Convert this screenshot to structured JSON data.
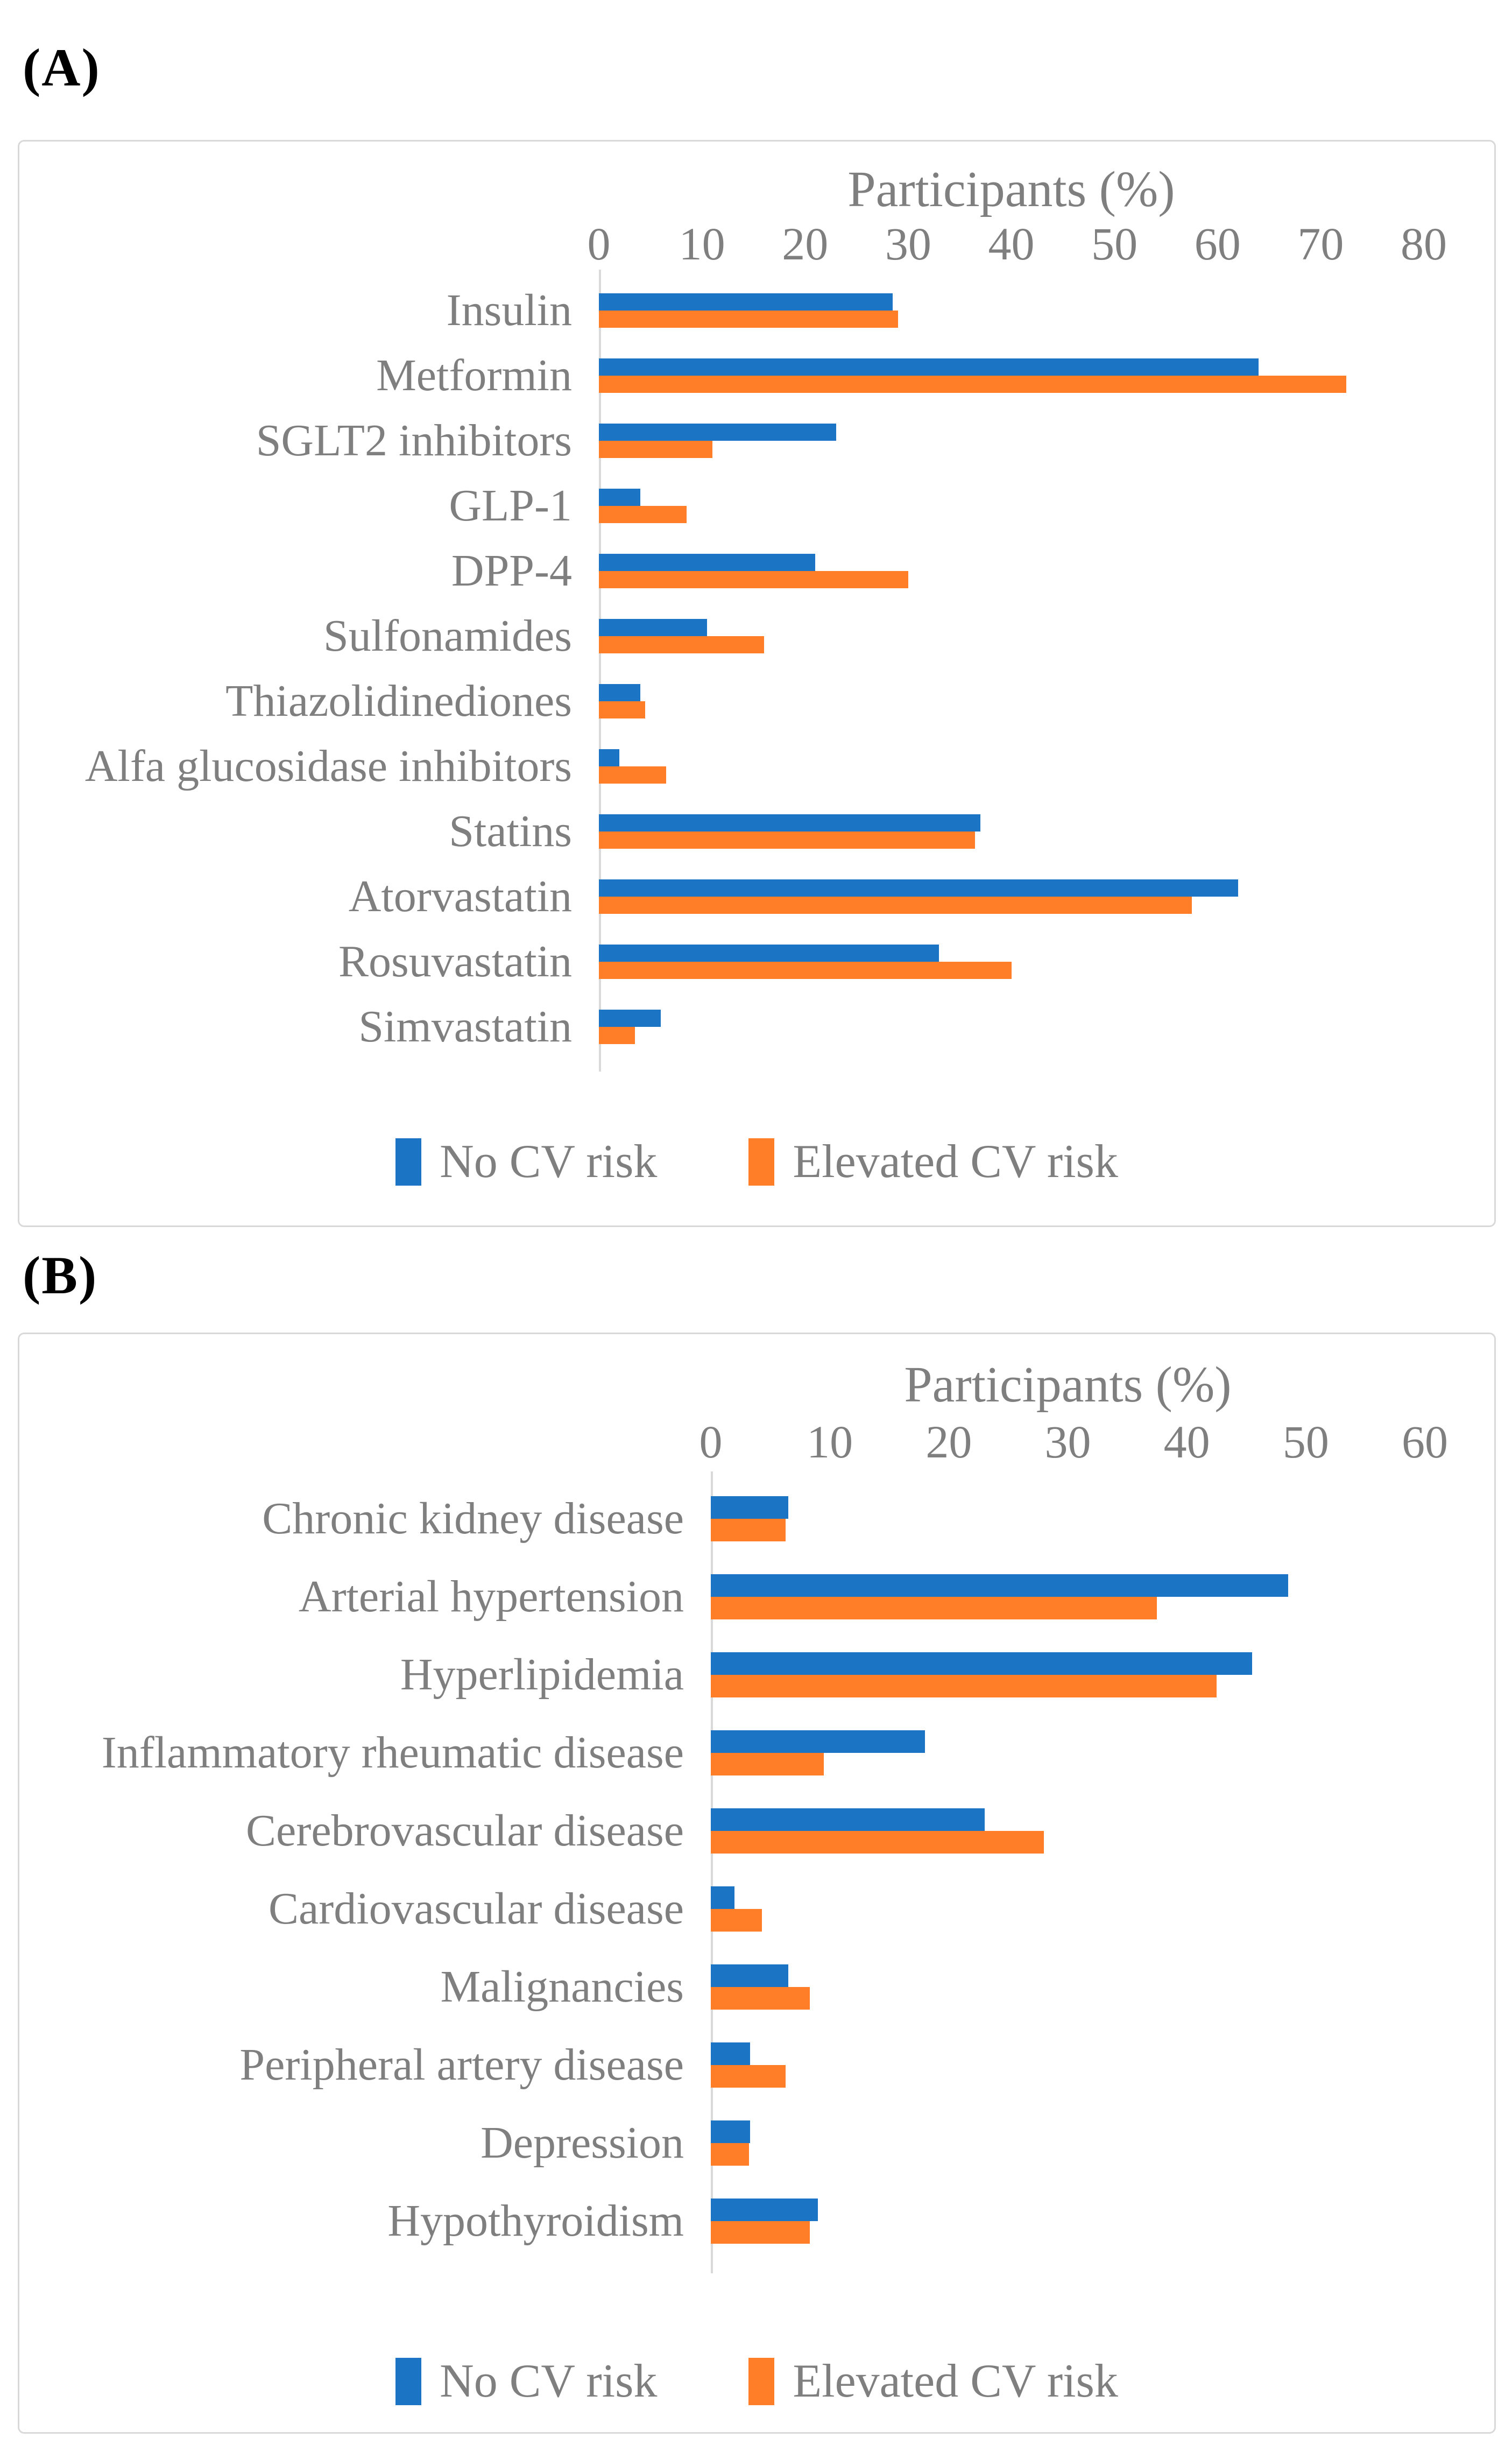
{
  "style": {
    "series_blue": "#1b74c4",
    "series_orange": "#ff7e27",
    "text_gray": "#7f7f7f",
    "axis_gray": "#d9d9d9",
    "panel_border_gray": "#d9d9d9",
    "panel_label_black": "#000000"
  },
  "chart_data": [
    {
      "type": "bar",
      "orientation": "horizontal",
      "panel_label": "(A)",
      "title": "Participants (%)",
      "xlabel": "Participants (%)",
      "xlim": [
        0,
        80
      ],
      "xticks": [
        0,
        10,
        20,
        30,
        40,
        50,
        60,
        70,
        80
      ],
      "grid": false,
      "legend_position": "bottom",
      "categories": [
        "Insulin",
        "Metformin",
        "SGLT2 inhibitors",
        "GLP-1",
        "DPP-4",
        "Sulfonamides",
        "Thiazolidinediones",
        "Alfa glucosidase inhibitors",
        "Statins",
        "Atorvastatin",
        "Rosuvastatin",
        "Simvastatin"
      ],
      "series": [
        {
          "name": "No CV risk",
          "color": "#1b74c4",
          "values": [
            28.5,
            64,
            23,
            4,
            21,
            10.5,
            4,
            2,
            37,
            62,
            33,
            6
          ]
        },
        {
          "name": "Elevated CV risk",
          "color": "#ff7e27",
          "values": [
            29,
            72.5,
            11,
            8.5,
            30,
            16,
            4.5,
            6.5,
            36.5,
            57.5,
            40,
            3.5
          ]
        }
      ]
    },
    {
      "type": "bar",
      "orientation": "horizontal",
      "panel_label": "(B)",
      "title": "Participants (%)",
      "xlabel": "Participants (%)",
      "xlim": [
        0,
        60
      ],
      "xticks": [
        0,
        10,
        20,
        30,
        40,
        50,
        60
      ],
      "grid": false,
      "legend_position": "bottom",
      "categories": [
        "Chronic kidney disease",
        "Arterial hypertension",
        "Hyperlipidemia",
        "Inflammatory rheumatic disease",
        "Cerebrovascular disease",
        "Cardiovascular disease",
        "Malignancies",
        "Peripheral artery disease",
        "Depression",
        "Hypothyroidism"
      ],
      "series": [
        {
          "name": "No CV risk",
          "color": "#1b74c4",
          "values": [
            6.5,
            48.5,
            45.5,
            18,
            23,
            2,
            6.5,
            3.3,
            3.3,
            9
          ]
        },
        {
          "name": "Elevated CV risk",
          "color": "#ff7e27",
          "values": [
            6.3,
            37.5,
            42.5,
            9.5,
            28,
            4.3,
            8.3,
            6.3,
            3.2,
            8.3
          ]
        }
      ]
    }
  ]
}
